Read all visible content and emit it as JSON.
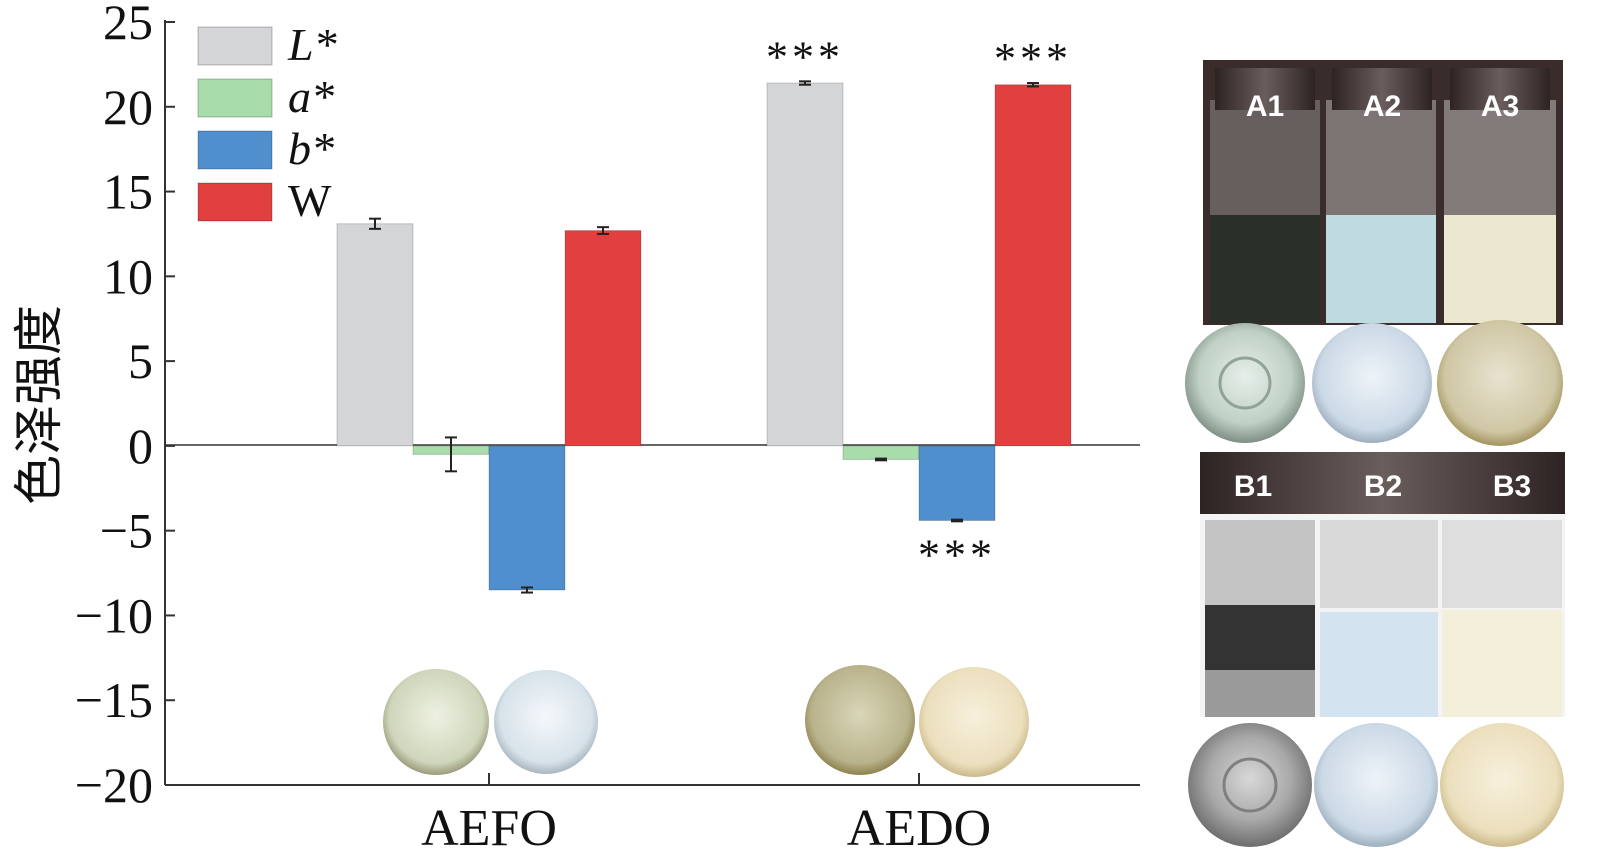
{
  "chart_data": {
    "type": "bar",
    "ylabel": "色泽强度",
    "xlabel": "",
    "ylim": [
      -20,
      25
    ],
    "yticks": [
      25,
      20,
      15,
      10,
      5,
      0,
      -5,
      -10,
      -15,
      -20
    ],
    "ytick_labels": [
      "25",
      "20",
      "15",
      "10",
      "5",
      "0",
      "−5",
      "−10",
      "−15",
      "−20"
    ],
    "categories": [
      "AEFO",
      "AEDO"
    ],
    "legend_position": "top-left",
    "series": [
      {
        "name": "L*",
        "color": "#d4d5d7",
        "values": [
          13.1,
          21.4
        ],
        "errors": [
          0.3,
          0.1
        ],
        "significance": [
          "",
          "***"
        ]
      },
      {
        "name": "a*",
        "color": "#a8dcab",
        "values": [
          -0.5,
          -0.8
        ],
        "errors": [
          1.0,
          0.05
        ],
        "significance": [
          "",
          ""
        ]
      },
      {
        "name": "b*",
        "color": "#4f8fce",
        "values": [
          -8.5,
          -4.4
        ],
        "errors": [
          0.15,
          0.05
        ],
        "significance": [
          "",
          "***"
        ]
      },
      {
        "name": "W",
        "color": "#e23f3f",
        "values": [
          12.7,
          21.3
        ],
        "errors": [
          0.2,
          0.1
        ],
        "significance": [
          "",
          "***"
        ]
      }
    ]
  },
  "photos": {
    "top_vial_labels": [
      "A1",
      "A2",
      "A3"
    ],
    "bottom_vial_labels": [
      "B1",
      "B2",
      "B3"
    ]
  }
}
